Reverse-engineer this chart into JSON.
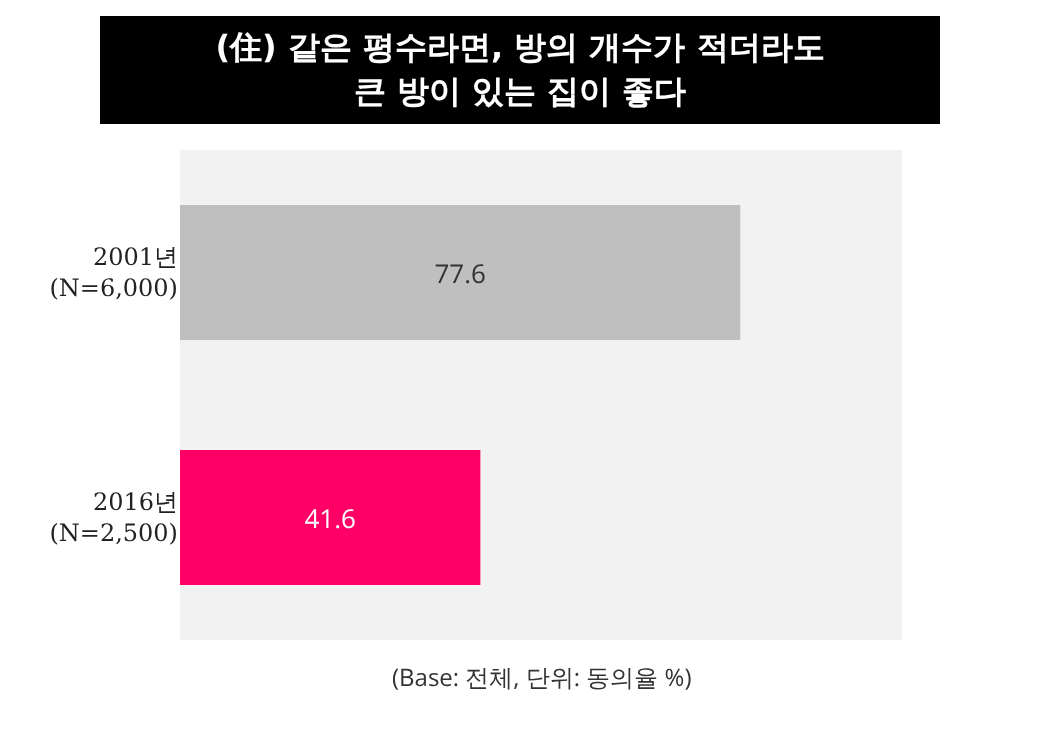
{
  "chart_data": {
    "type": "bar",
    "orientation": "horizontal",
    "title": "(住) 같은 평수라면, 방의 개수가 적더라도\n큰 방이 있는 집이 좋다",
    "categories": [
      "2001년\n(N=6,000)",
      "2016년\n(N=2,500)"
    ],
    "values": [
      77.6,
      41.6
    ],
    "colors": [
      "#bfbfbf",
      "#ff0066"
    ],
    "xlim": [
      0,
      100
    ],
    "data_labels": true,
    "tick_labels": "y",
    "annotations": [
      "(Base: 전체, 단위: 동의율 %)"
    ]
  }
}
